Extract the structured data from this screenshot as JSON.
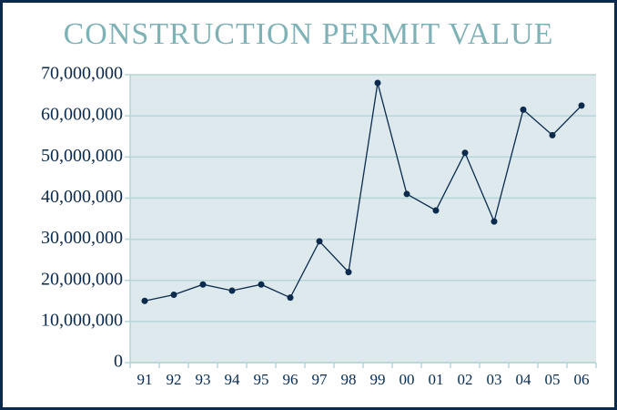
{
  "chart_data": {
    "type": "line",
    "title": "CONSTRUCTION PERMIT VALUE",
    "categories": [
      "91",
      "92",
      "93",
      "94",
      "95",
      "96",
      "97",
      "98",
      "99",
      "00",
      "01",
      "02",
      "03",
      "04",
      "05",
      "06"
    ],
    "series": [
      {
        "name": "Construction permit value",
        "color": "#0b2a4c",
        "values": [
          15000000,
          16500000,
          19000000,
          17500000,
          19000000,
          15800000,
          29500000,
          22000000,
          68000000,
          41000000,
          37000000,
          51000000,
          34300000,
          61500000,
          55300000,
          62500000
        ]
      }
    ],
    "ylim": [
      0,
      70000000
    ],
    "yticks": [
      0,
      {
        "value": 10000000,
        "label": "10,000,000"
      },
      {
        "value": 20000000,
        "label": "20,000,000"
      },
      {
        "value": 30000000,
        "label": "30,000,000"
      },
      {
        "value": 40000000,
        "label": "40,000,000"
      },
      {
        "value": 50000000,
        "label": "50,000,000"
      },
      {
        "value": 60000000,
        "label": "60,000,000"
      },
      {
        "value": 70000000,
        "label": "70,000,000"
      }
    ],
    "grid": true
  }
}
